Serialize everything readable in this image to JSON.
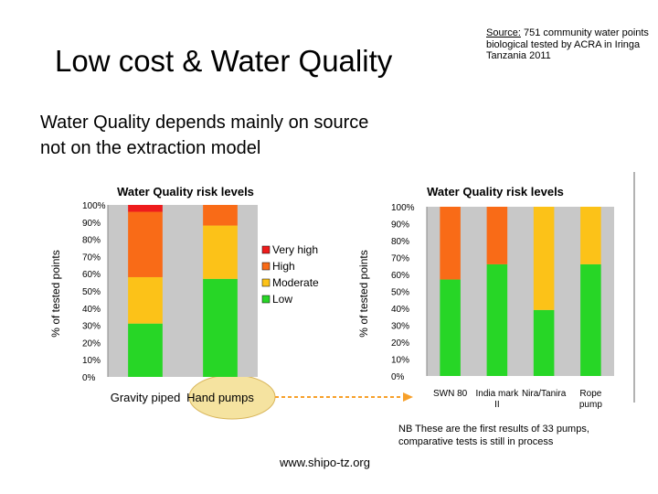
{
  "slide": {
    "title": "Low cost & Water Quality",
    "source_label": "Source:",
    "source_text": " 751 community water points biological tested by ACRA in Iringa Tanzania 2011",
    "subtitle_line1": "Water Quality depends mainly on source",
    "subtitle_line2": "not on the extraction model",
    "nb_text": "NB These are the first results of 33 pumps, comparative tests is still in process",
    "url": "www.shipo-tz.org"
  },
  "colors": {
    "very_high": "#ee1c1c",
    "high": "#f96b17",
    "moderate": "#fcc218",
    "low": "#27d626",
    "plot_bg": "#c8c8c8",
    "highlight": "#f5e3a0"
  },
  "chart_data": [
    {
      "type": "bar",
      "stacked": true,
      "title": "Water Quality risk levels",
      "ylabel": "% of tested points",
      "xlabel": "",
      "ylim": [
        0,
        100
      ],
      "yticks": [
        "0%",
        "10%",
        "20%",
        "30%",
        "40%",
        "50%",
        "60%",
        "70%",
        "80%",
        "90%",
        "100%"
      ],
      "categories": [
        "Gravity piped",
        "Hand pumps"
      ],
      "grid": false,
      "plot_background": "grey",
      "legend_position": "right",
      "series": [
        {
          "name": "Low",
          "color": "#27d626",
          "values": [
            31,
            57
          ]
        },
        {
          "name": "Moderate",
          "color": "#fcc218",
          "values": [
            27,
            31
          ]
        },
        {
          "name": "High",
          "color": "#f96b17",
          "values": [
            38,
            12
          ]
        },
        {
          "name": "Very high",
          "color": "#ee1c1c",
          "values": [
            4,
            0
          ]
        }
      ],
      "legend_order": [
        "Very high",
        "High",
        "Moderate",
        "Low"
      ],
      "highlighted_category": "Hand pumps"
    },
    {
      "type": "bar",
      "stacked": true,
      "title": "Water Quality risk levels",
      "ylabel": "",
      "xlabel": "",
      "ylim": [
        0,
        100
      ],
      "yticks": [
        "0%",
        "10%",
        "20%",
        "30%",
        "40%",
        "50%",
        "60%",
        "70%",
        "80%",
        "90%",
        "100%"
      ],
      "categories": [
        "SWN 80",
        "India mark II",
        "Nira/Tanira",
        "Rope pump"
      ],
      "grid": false,
      "plot_background": "grey",
      "series": [
        {
          "color": "#27d626",
          "values": [
            57,
            66,
            39,
            66
          ]
        },
        {
          "color": "#fcc218",
          "values": [
            0,
            0,
            61,
            34
          ]
        },
        {
          "color": "#f96b17",
          "values": [
            43,
            34,
            0,
            0
          ]
        }
      ]
    }
  ]
}
